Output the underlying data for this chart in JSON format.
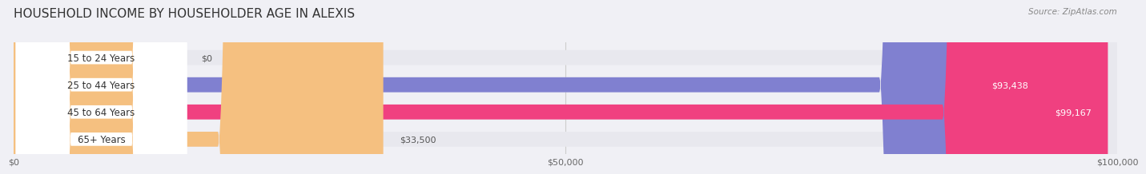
{
  "title": "HOUSEHOLD INCOME BY HOUSEHOLDER AGE IN ALEXIS",
  "source": "Source: ZipAtlas.com",
  "categories": [
    "15 to 24 Years",
    "25 to 44 Years",
    "45 to 64 Years",
    "65+ Years"
  ],
  "values": [
    0,
    93438,
    99167,
    33500
  ],
  "bar_colors": [
    "#5ecfcf",
    "#8080d0",
    "#f04080",
    "#f5c080"
  ],
  "background_color": "#f0f0f5",
  "bar_bg_color": "#e8e8ee",
  "xlim": [
    0,
    100000
  ],
  "xticks": [
    0,
    50000,
    100000
  ],
  "xtick_labels": [
    "$0",
    "$50,000",
    "$100,000"
  ],
  "bar_height": 0.55,
  "value_labels": [
    "$0",
    "$93,438",
    "$99,167",
    "$33,500"
  ]
}
